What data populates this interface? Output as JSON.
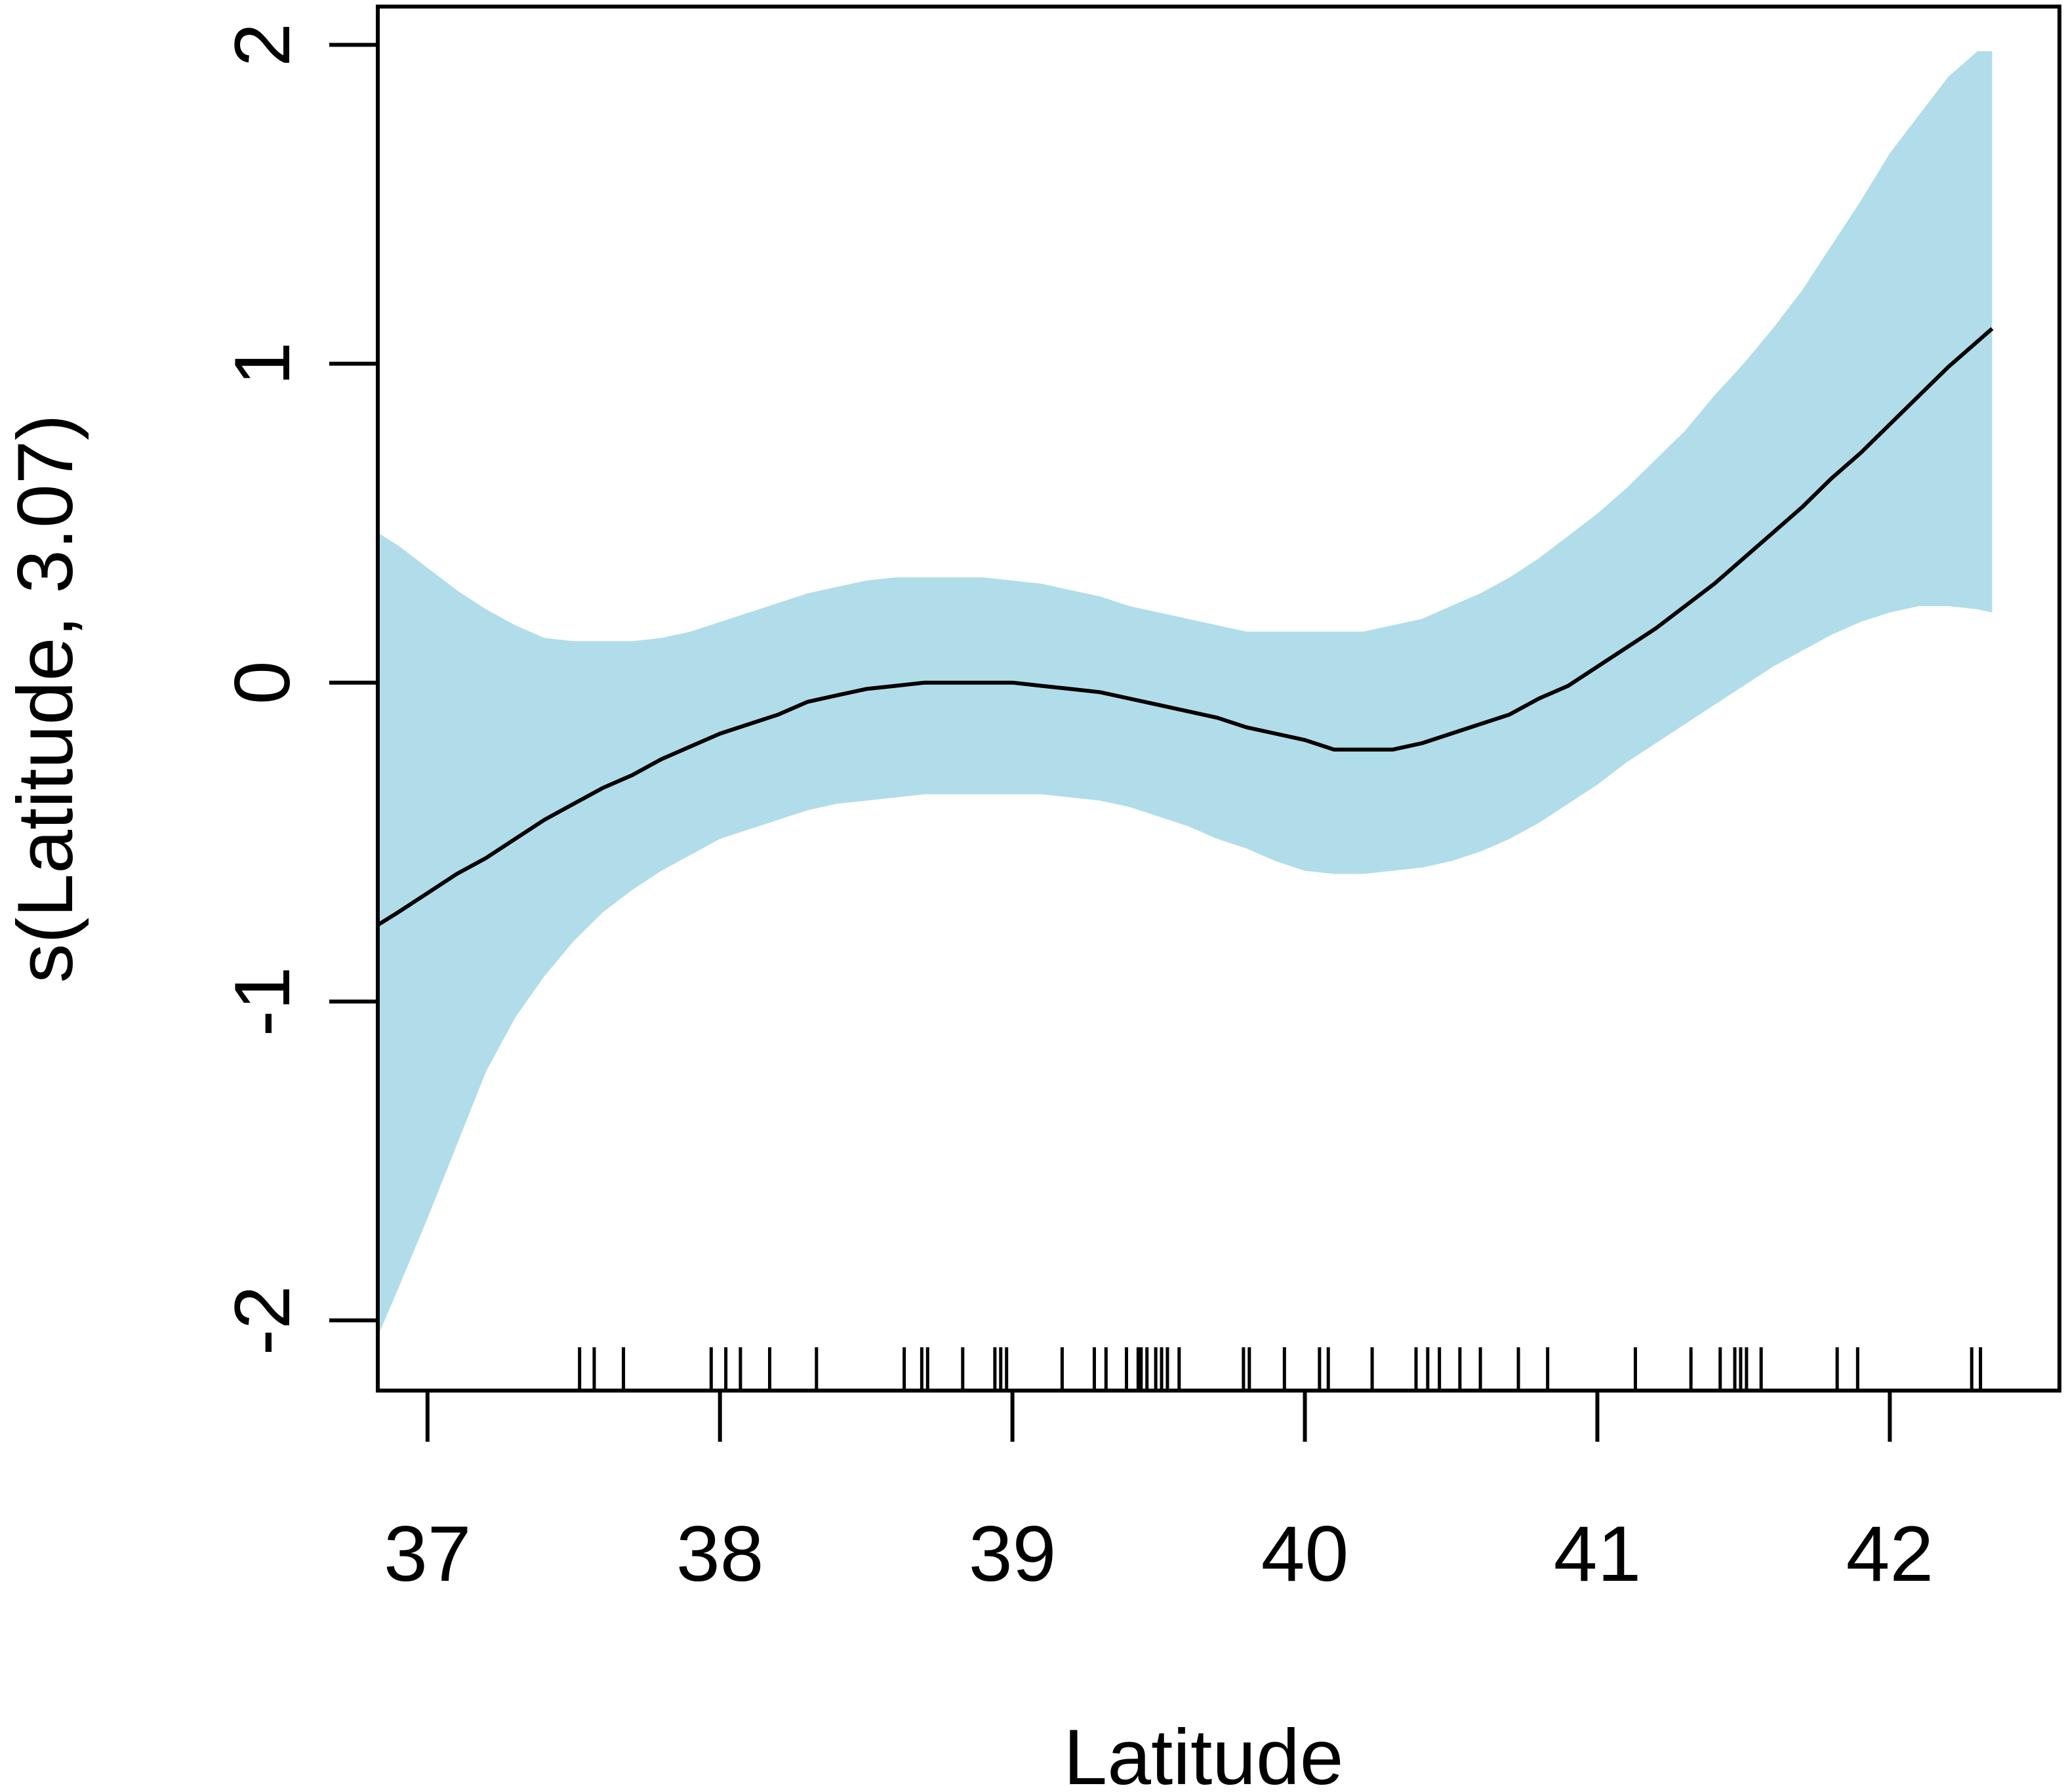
{
  "chart_data": {
    "type": "line",
    "title": "",
    "xlabel": "Latitude",
    "ylabel": "s(Latitude, 3.07)",
    "xlim": [
      36.83,
      42.58
    ],
    "ylim": [
      -2.22,
      2.12
    ],
    "x_ticks": [
      {
        "value": 37,
        "label": "37"
      },
      {
        "value": 38,
        "label": "38"
      },
      {
        "value": 39,
        "label": "39"
      },
      {
        "value": 40,
        "label": "40"
      },
      {
        "value": 41,
        "label": "41"
      },
      {
        "value": 42,
        "label": "42"
      }
    ],
    "y_ticks": [
      {
        "value": -2,
        "label": "-2"
      },
      {
        "value": -1,
        "label": "-1"
      },
      {
        "value": 0,
        "label": "0"
      },
      {
        "value": 1,
        "label": "1"
      },
      {
        "value": 2,
        "label": "2"
      }
    ],
    "grid": false,
    "line_color": "#000000",
    "band_color": "#b0dde9",
    "series": [
      {
        "x": [
          36.83,
          36.9,
          37.0,
          37.1,
          37.2,
          37.3,
          37.4,
          37.5,
          37.6,
          37.7,
          37.8,
          37.9,
          38.0,
          38.1,
          38.2,
          38.3,
          38.4,
          38.5,
          38.6,
          38.7,
          38.8,
          38.9,
          39.0,
          39.1,
          39.2,
          39.3,
          39.4,
          39.5,
          39.6,
          39.7,
          39.8,
          39.9,
          40.0,
          40.1,
          40.2,
          40.3,
          40.4,
          40.5,
          40.6,
          40.7,
          40.8,
          40.9,
          41.0,
          41.1,
          41.2,
          41.3,
          41.4,
          41.5,
          41.6,
          41.7,
          41.8,
          41.9,
          42.0,
          42.1,
          42.2,
          42.3,
          42.35
        ],
        "fit": [
          -0.76,
          -0.72,
          -0.66,
          -0.6,
          -0.55,
          -0.49,
          -0.43,
          -0.38,
          -0.33,
          -0.29,
          -0.24,
          -0.2,
          -0.16,
          -0.13,
          -0.1,
          -0.06,
          -0.04,
          -0.02,
          -0.01,
          0.0,
          0.0,
          0.0,
          0.0,
          -0.01,
          -0.02,
          -0.03,
          -0.05,
          -0.07,
          -0.09,
          -0.11,
          -0.14,
          -0.16,
          -0.18,
          -0.21,
          -0.21,
          -0.21,
          -0.19,
          -0.16,
          -0.13,
          -0.1,
          -0.05,
          -0.01,
          0.05,
          0.11,
          0.17,
          0.24,
          0.31,
          0.39,
          0.47,
          0.55,
          0.64,
          0.72,
          0.81,
          0.9,
          0.99,
          1.07,
          1.11
        ],
        "upper": [
          0.47,
          0.43,
          0.36,
          0.29,
          0.23,
          0.18,
          0.14,
          0.13,
          0.13,
          0.13,
          0.14,
          0.16,
          0.19,
          0.22,
          0.25,
          0.28,
          0.3,
          0.32,
          0.33,
          0.33,
          0.33,
          0.33,
          0.32,
          0.31,
          0.29,
          0.27,
          0.24,
          0.22,
          0.2,
          0.18,
          0.16,
          0.16,
          0.16,
          0.16,
          0.16,
          0.18,
          0.2,
          0.24,
          0.28,
          0.33,
          0.39,
          0.46,
          0.53,
          0.61,
          0.7,
          0.79,
          0.9,
          1.0,
          1.11,
          1.23,
          1.37,
          1.51,
          1.66,
          1.78,
          1.9,
          1.98,
          1.98
        ],
        "lower": [
          -2.05,
          -1.9,
          -1.68,
          -1.45,
          -1.22,
          -1.05,
          -0.92,
          -0.81,
          -0.72,
          -0.65,
          -0.59,
          -0.54,
          -0.49,
          -0.46,
          -0.43,
          -0.4,
          -0.38,
          -0.37,
          -0.36,
          -0.35,
          -0.35,
          -0.35,
          -0.35,
          -0.35,
          -0.36,
          -0.37,
          -0.39,
          -0.42,
          -0.45,
          -0.49,
          -0.52,
          -0.56,
          -0.59,
          -0.6,
          -0.6,
          -0.59,
          -0.58,
          -0.56,
          -0.53,
          -0.49,
          -0.44,
          -0.38,
          -0.32,
          -0.25,
          -0.19,
          -0.13,
          -0.07,
          -0.01,
          0.05,
          0.1,
          0.15,
          0.19,
          0.22,
          0.24,
          0.24,
          0.23,
          0.22
        ]
      }
    ],
    "rug": [
      37.52,
      37.57,
      37.67,
      37.97,
      38.02,
      38.07,
      38.17,
      38.33,
      38.63,
      38.69,
      38.71,
      38.83,
      38.94,
      38.96,
      38.98,
      39.17,
      39.28,
      39.32,
      39.39,
      39.43,
      39.44,
      39.46,
      39.49,
      39.51,
      39.53,
      39.57,
      39.79,
      39.81,
      39.93,
      40.05,
      40.08,
      40.23,
      40.38,
      40.42,
      40.46,
      40.53,
      40.6,
      40.73,
      40.83,
      41.13,
      41.32,
      41.42,
      41.47,
      41.49,
      41.51,
      41.56,
      41.82,
      41.89,
      42.28,
      42.31
    ]
  }
}
